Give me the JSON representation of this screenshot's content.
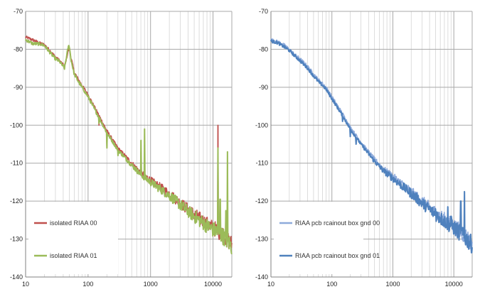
{
  "chart_data": [
    {
      "type": "line",
      "title": "",
      "xlabel": "",
      "ylabel": "",
      "xscale": "log",
      "xlim": [
        10,
        20000
      ],
      "ylim": [
        -140,
        -70
      ],
      "x_ticks": [
        10,
        100,
        1000,
        10000
      ],
      "x_tick_labels": [
        "10",
        "100",
        "1000",
        "10000"
      ],
      "y_ticks": [
        -70,
        -80,
        -90,
        -100,
        -110,
        -120,
        -130,
        -140
      ],
      "y_tick_labels": [
        "-70",
        "-80",
        "-90",
        "-100",
        "-110",
        "-120",
        "-130",
        "-140"
      ],
      "grid": true,
      "legend_position": "bottom-left",
      "series": [
        {
          "name": "isolated RIAA 00",
          "color": "#c0504d",
          "points": [
            [
              10,
              -76.8
            ],
            [
              13,
              -77.5
            ],
            [
              17,
              -78.4
            ],
            [
              20,
              -78.8
            ],
            [
              25,
              -80.5
            ],
            [
              30,
              -82
            ],
            [
              35,
              -83
            ],
            [
              42,
              -84.5
            ],
            [
              48,
              -80.5
            ],
            [
              50,
              -79.5
            ],
            [
              53,
              -82
            ],
            [
              60,
              -86
            ],
            [
              70,
              -88
            ],
            [
              80,
              -89.5
            ],
            [
              100,
              -92
            ],
            [
              120,
              -94.5
            ],
            [
              150,
              -97.5
            ],
            [
              200,
              -101.5
            ],
            [
              300,
              -106
            ],
            [
              500,
              -110
            ],
            [
              700,
              -112.5
            ],
            [
              1000,
              -114.5
            ],
            [
              2000,
              -118
            ],
            [
              3000,
              -120.5
            ],
            [
              5000,
              -123.5
            ],
            [
              8000,
              -126
            ],
            [
              10000,
              -127
            ],
            [
              12000,
              -127.8
            ],
            [
              14000,
              -128.5
            ],
            [
              17000,
              -130
            ],
            [
              20000,
              -131.5
            ]
          ],
          "spikes": [
            [
              150,
              -100
            ],
            [
              200,
              -106
            ],
            [
              700,
              -107
            ],
            [
              12000,
              -100
            ]
          ]
        },
        {
          "name": "isolated RIAA 01",
          "color": "#9bbb59",
          "points": [
            [
              10,
              -77.5
            ],
            [
              13,
              -78.5
            ],
            [
              17,
              -78.6
            ],
            [
              20,
              -79
            ],
            [
              25,
              -81
            ],
            [
              30,
              -82.5
            ],
            [
              35,
              -83.2
            ],
            [
              42,
              -85
            ],
            [
              48,
              -79.5
            ],
            [
              50,
              -79
            ],
            [
              53,
              -82.5
            ],
            [
              60,
              -86.5
            ],
            [
              70,
              -88.5
            ],
            [
              80,
              -90
            ],
            [
              100,
              -92.5
            ],
            [
              120,
              -95
            ],
            [
              150,
              -98
            ],
            [
              200,
              -102
            ],
            [
              300,
              -106.5
            ],
            [
              500,
              -110.5
            ],
            [
              700,
              -113
            ],
            [
              1000,
              -115
            ],
            [
              2000,
              -118.5
            ],
            [
              3000,
              -121
            ],
            [
              5000,
              -124
            ],
            [
              8000,
              -126.5
            ],
            [
              10000,
              -127.5
            ],
            [
              12000,
              -128.2
            ],
            [
              14000,
              -129
            ],
            [
              17000,
              -130.5
            ],
            [
              20000,
              -132
            ]
          ],
          "spikes": [
            [
              150,
              -99.5
            ],
            [
              200,
              -106
            ],
            [
              300,
              -108
            ],
            [
              700,
              -104
            ],
            [
              800,
              -101
            ],
            [
              12000,
              -106
            ],
            [
              13000,
              -119.5
            ],
            [
              16000,
              -122.5
            ],
            [
              17000,
              -107
            ]
          ]
        }
      ]
    },
    {
      "type": "line",
      "title": "",
      "xlabel": "",
      "ylabel": "",
      "xscale": "log",
      "xlim": [
        10,
        20000
      ],
      "ylim": [
        -140,
        -70
      ],
      "x_ticks": [
        10,
        100,
        1000,
        10000
      ],
      "x_tick_labels": [
        "10",
        "100",
        "1000",
        "10000"
      ],
      "y_ticks": [
        -70,
        -80,
        -90,
        -100,
        -110,
        -120,
        -130,
        -140
      ],
      "y_tick_labels": [
        "-70",
        "-80",
        "-90",
        "-100",
        "-110",
        "-120",
        "-130",
        "-140"
      ],
      "grid": true,
      "legend_position": "bottom-left",
      "series": [
        {
          "name": "RIAA pcb rcainout box gnd 00",
          "color": "#8eaadb",
          "points": [
            [
              10,
              -77.5
            ],
            [
              13,
              -78
            ],
            [
              17,
              -79
            ],
            [
              20,
              -80
            ],
            [
              25,
              -81.5
            ],
            [
              30,
              -82.5
            ],
            [
              40,
              -84.5
            ],
            [
              50,
              -86.5
            ],
            [
              60,
              -88
            ],
            [
              70,
              -89
            ],
            [
              80,
              -90
            ],
            [
              100,
              -92.5
            ],
            [
              150,
              -97
            ],
            [
              200,
              -100.5
            ],
            [
              300,
              -104.5
            ],
            [
              500,
              -109
            ],
            [
              700,
              -111.5
            ],
            [
              1000,
              -113.5
            ],
            [
              2000,
              -117.5
            ],
            [
              3000,
              -120
            ],
            [
              5000,
              -123
            ],
            [
              8000,
              -125.5
            ],
            [
              10000,
              -126.5
            ],
            [
              15000,
              -129
            ],
            [
              20000,
              -131
            ]
          ],
          "spikes": []
        },
        {
          "name": "RIAA pcb rcainout box gnd 01",
          "color": "#4f81bd",
          "points": [
            [
              10,
              -77.8
            ],
            [
              13,
              -78.3
            ],
            [
              17,
              -79.5
            ],
            [
              20,
              -80.3
            ],
            [
              25,
              -81.8
            ],
            [
              30,
              -83
            ],
            [
              40,
              -85
            ],
            [
              50,
              -87
            ],
            [
              60,
              -88.5
            ],
            [
              70,
              -89.5
            ],
            [
              80,
              -90.5
            ],
            [
              100,
              -93
            ],
            [
              150,
              -97.5
            ],
            [
              200,
              -101
            ],
            [
              300,
              -105
            ],
            [
              500,
              -109.5
            ],
            [
              700,
              -112
            ],
            [
              1000,
              -114
            ],
            [
              2000,
              -118
            ],
            [
              3000,
              -120.5
            ],
            [
              5000,
              -123.5
            ],
            [
              8000,
              -126
            ],
            [
              10000,
              -127
            ],
            [
              15000,
              -129.5
            ],
            [
              20000,
              -131.5
            ]
          ],
          "spikes": [
            [
              150,
              -99
            ],
            [
              200,
              -103
            ],
            [
              250,
              -105
            ],
            [
              5000,
              -122
            ],
            [
              8000,
              -121.5
            ],
            [
              9000,
              -124
            ],
            [
              13000,
              -120
            ],
            [
              14000,
              -127
            ],
            [
              15000,
              -117.5
            ]
          ]
        }
      ]
    }
  ]
}
